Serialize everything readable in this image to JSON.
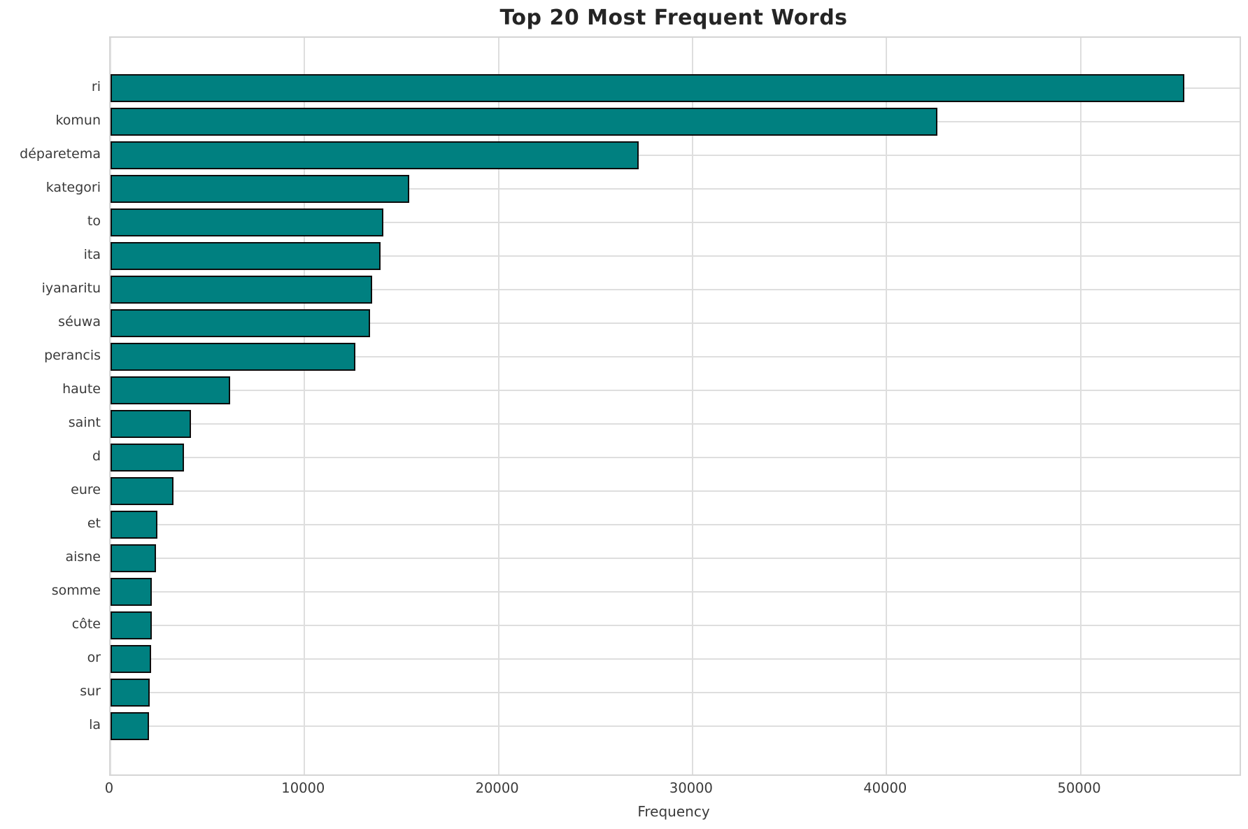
{
  "chart_data": {
    "type": "bar",
    "orientation": "horizontal",
    "title": "Top 20 Most Frequent Words",
    "xlabel": "Frequency",
    "ylabel": "",
    "categories": [
      "ri",
      "komun",
      "déparetema",
      "kategori",
      "to",
      "ita",
      "iyanaritu",
      "séuwa",
      "perancis",
      "haute",
      "saint",
      "d",
      "eure",
      "et",
      "aisne",
      "somme",
      "côte",
      "or",
      "sur",
      "la"
    ],
    "values": [
      55400,
      42670,
      27250,
      15420,
      14100,
      13950,
      13520,
      13410,
      12650,
      6220,
      4170,
      3840,
      3270,
      2440,
      2370,
      2180,
      2150,
      2110,
      2040,
      2010
    ],
    "xticks": [
      0,
      10000,
      20000,
      30000,
      40000,
      50000
    ],
    "xtick_labels": [
      "0",
      "10000",
      "20000",
      "30000",
      "40000",
      "50000"
    ],
    "xlim": [
      0,
      58200
    ],
    "grid": true,
    "legend": false,
    "colors": {
      "bar_fill": "#008080",
      "bar_edge": "#0c0c0c",
      "gridline": "#dedede",
      "spine": "#d5d5d5",
      "tick_text": "#3a3a3a",
      "title_text": "#252525",
      "background": "#ffffff"
    }
  }
}
